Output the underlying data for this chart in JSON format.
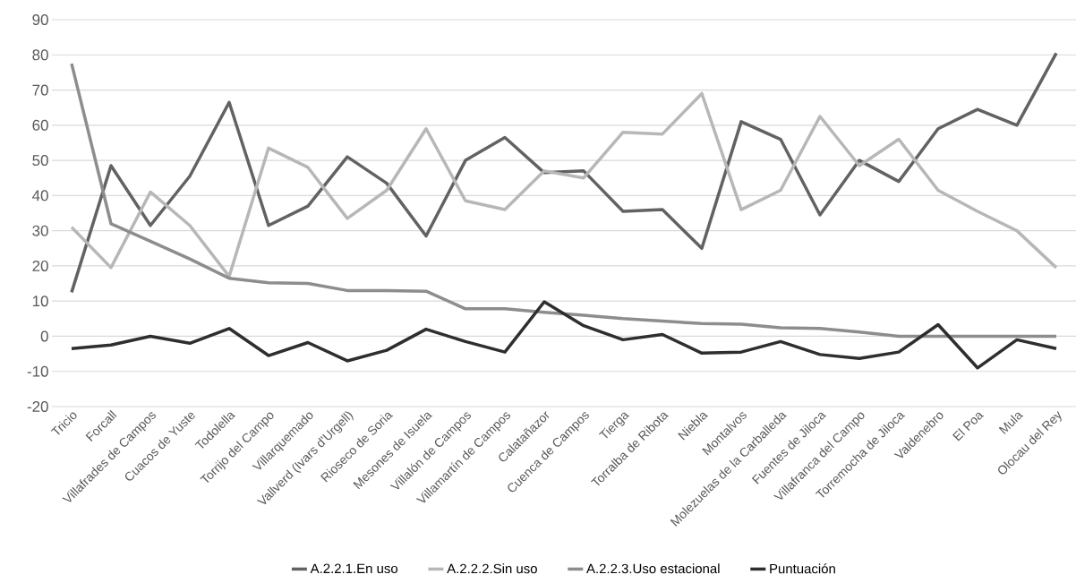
{
  "chart_data": {
    "type": "line",
    "categories": [
      "Tricio",
      "Forcall",
      "Villafrades de Campos",
      "Cuacos de Yuste",
      "Todolella",
      "Torrijo del Campo",
      "Villarquemado",
      "Vallverd (Ivars d'Urgell)",
      "Rioseco de Soria",
      "Mesones de Isuela",
      "Villalón de Campos",
      "Villamartín de Campos",
      "Calatañazor",
      "Cuenca de Campos",
      "Tierga",
      "Torralba de Ribota",
      "Niebla",
      "Montalvos",
      "Molezuelas de la Carballeda",
      "Fuentes de Jiloca",
      "Villafranca del Campo",
      "Torremocha de Jiloca",
      "Valdenebro",
      "El Poa",
      "Mula",
      "Olocau del Rey"
    ],
    "series": [
      {
        "name": "A.2.2.1.En uso",
        "color": "#616264",
        "values": [
          12.5,
          48.5,
          31.5,
          45.5,
          66.5,
          31.5,
          37,
          51,
          43.5,
          28.5,
          50,
          56.5,
          46.5,
          47,
          35.5,
          36,
          25,
          61,
          56,
          34.5,
          50,
          44,
          59,
          64.5,
          60,
          80.5
        ]
      },
      {
        "name": "A.2.2.2.Sin uso",
        "color": "#b6b7b9",
        "values": [
          31,
          19.5,
          41,
          31.5,
          17,
          53.5,
          48,
          33.5,
          41.5,
          59,
          38.5,
          36,
          47,
          45,
          58,
          57.5,
          69,
          36,
          41.5,
          62.5,
          48.5,
          56,
          41.5,
          35.5,
          30,
          19.5
        ]
      },
      {
        "name": "A.2.2.3.Uso estacional",
        "color": "#8c8d8f",
        "values": [
          77.5,
          32,
          27,
          22,
          16.5,
          15.2,
          15,
          13,
          13,
          12.8,
          7.8,
          7.8,
          6.8,
          6,
          5,
          4.3,
          3.6,
          3.4,
          2.4,
          2.2,
          1.2,
          0,
          0,
          0,
          0,
          0
        ]
      },
      {
        "name": "Puntuación",
        "color": "#2e2e30",
        "values": [
          -3.5,
          -2.5,
          0,
          -2,
          2.2,
          -5.5,
          -1.8,
          -7,
          -4,
          2,
          -1.5,
          -4.5,
          9.8,
          3,
          -1,
          0.5,
          -4.8,
          -4.5,
          -1.5,
          -5.2,
          -6.3,
          -4.5,
          3.3,
          -9,
          -1,
          -3.5
        ]
      }
    ],
    "ylim": [
      -20,
      90
    ],
    "yticks": [
      -20,
      -10,
      0,
      10,
      20,
      30,
      40,
      50,
      60,
      70,
      80,
      90
    ],
    "grid": "y",
    "legend": "bottom"
  }
}
